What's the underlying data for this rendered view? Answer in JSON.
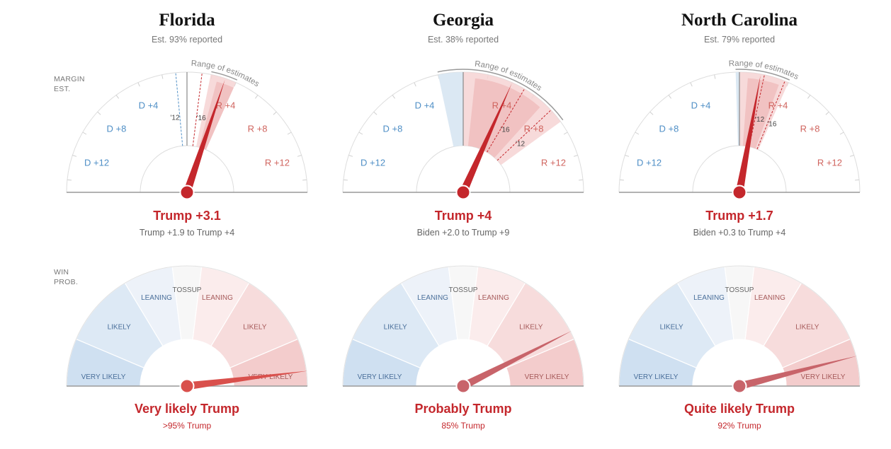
{
  "row_labels": {
    "margin": [
      "MARGIN",
      "EST."
    ],
    "win": [
      "WIN",
      "PROB."
    ]
  },
  "margin_ticks": [
    "D +12",
    "D +8",
    "D +4",
    "R +4",
    "R +8",
    "R +12"
  ],
  "range_title": "Range of estimates",
  "win_segments": [
    "VERY LIKELY",
    "LIKELY",
    "LEANING",
    "TOSSUP",
    "LEANING",
    "LIKELY",
    "VERY LIKELY"
  ],
  "colors": {
    "accent_red": "#c4272c",
    "dem_blue": "#4f8fc6",
    "rep_red": "#d0655f",
    "range_fill": "#f6d3d3",
    "dem_range_fill": "#dbe8f3"
  },
  "chart_data": [
    {
      "type": "gauge",
      "state": "Florida",
      "reported": "Est. 93% reported",
      "margin_estimate": 3.1,
      "margin_label": "Trump +3.1",
      "margin_range": [
        1.9,
        4
      ],
      "margin_range_label": "Trump +1.9 to Trump +4",
      "previous_results": [
        {
          "year": "'12",
          "margin": -0.9
        },
        {
          "year": "'16",
          "margin": 1.2
        }
      ],
      "win_probability_trump": 96,
      "win_label": "Very likely Trump",
      "win_sub": ">95% Trump"
    },
    {
      "type": "gauge",
      "state": "Georgia",
      "reported": "Est. 38% reported",
      "margin_estimate": 4,
      "margin_label": "Trump +4",
      "margin_range": [
        -2.0,
        9
      ],
      "margin_range_label": "Biden +2.0 to Trump +9",
      "previous_results": [
        {
          "year": "'16",
          "margin": 5.1
        },
        {
          "year": "'12",
          "margin": 7.8
        }
      ],
      "win_probability_trump": 85,
      "win_label": "Probably Trump",
      "win_sub": "85% Trump"
    },
    {
      "type": "gauge",
      "state": "North Carolina",
      "reported": "Est. 79% reported",
      "margin_estimate": 1.7,
      "margin_label": "Trump +1.7",
      "margin_range": [
        -0.3,
        4
      ],
      "margin_range_label": "Biden +0.3 to Trump +4",
      "previous_results": [
        {
          "year": "'12",
          "margin": 2.0
        },
        {
          "year": "'16",
          "margin": 3.7
        }
      ],
      "win_probability_trump": 92,
      "win_label": "Quite likely Trump",
      "win_sub": "92% Trump"
    }
  ]
}
